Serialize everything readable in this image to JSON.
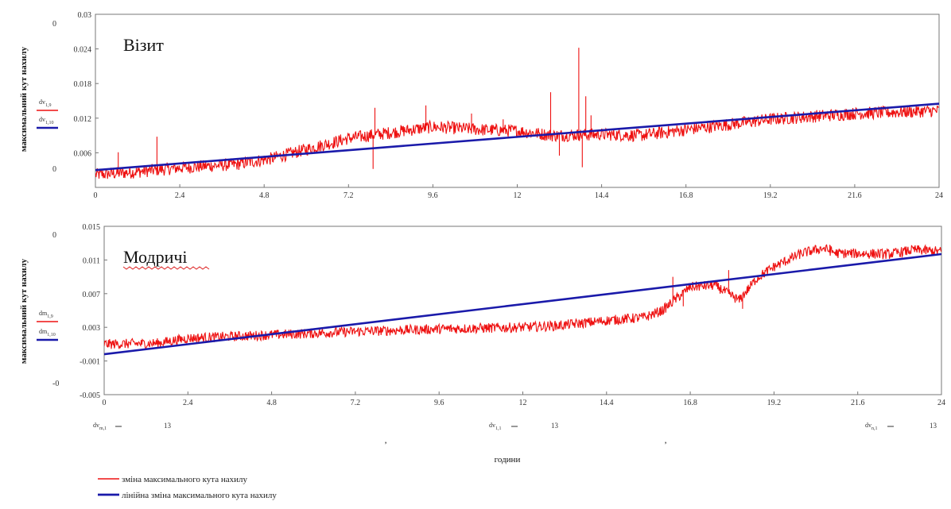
{
  "chart_data": [
    {
      "type": "line",
      "title": "Візит",
      "ylabel": "максимальний кут нахилу",
      "xlim": [
        0,
        24
      ],
      "ylim": [
        0,
        0.03
      ],
      "x_ticks": [
        "0",
        "2.4",
        "4.8",
        "7.2",
        "9.6",
        "12",
        "14.4",
        "16.8",
        "19.2",
        "21.6",
        "24"
      ],
      "y_ticks": [
        "0",
        "0.006",
        "0.012",
        "0.018",
        "0.024",
        "0.03"
      ],
      "y_ticks_display": [
        "",
        "0.006",
        "0.012",
        "0.018",
        "0.024",
        "0.03"
      ],
      "extra_left_values": [
        "0",
        "0"
      ],
      "var_labels": [
        "dv_{1,9}",
        "dv_{1,10}"
      ],
      "series": [
        {
          "color": "#ee1111",
          "noise": 0.0011,
          "points": [
            [
              0,
              0.0022
            ],
            [
              1,
              0.0026
            ],
            [
              2.4,
              0.0034
            ],
            [
              4,
              0.004
            ],
            [
              5,
              0.005
            ],
            [
              7.2,
              0.0085
            ],
            [
              9.6,
              0.0105
            ],
            [
              11,
              0.01
            ],
            [
              12,
              0.0098
            ],
            [
              13,
              0.009
            ],
            [
              14.4,
              0.0092
            ],
            [
              15.5,
              0.009
            ],
            [
              16.8,
              0.01
            ],
            [
              19.2,
              0.0118
            ],
            [
              21.6,
              0.0128
            ],
            [
              24,
              0.0133
            ]
          ],
          "spikes": [
            [
              0.65,
              0.0061
            ],
            [
              1.75,
              0.0088
            ],
            [
              7.95,
              0.0138
            ],
            [
              9.4,
              0.0142
            ],
            [
              10.7,
              0.0128
            ],
            [
              11.6,
              0.0118
            ],
            [
              12.95,
              0.0165
            ],
            [
              13.75,
              0.0242
            ],
            [
              13.95,
              0.0158
            ],
            [
              14.1,
              0.0125
            ]
          ],
          "dips": [
            [
              7.9,
              0.0032
            ],
            [
              13.85,
              0.0035
            ],
            [
              13.2,
              0.0055
            ]
          ]
        },
        {
          "color": "#1a1aaa",
          "points": [
            [
              0,
              0.003
            ],
            [
              24,
              0.0145
            ]
          ]
        }
      ]
    },
    {
      "type": "line",
      "title": "Модричі",
      "ylabel": "максимальний кут нахилу",
      "xlim": [
        0,
        24
      ],
      "ylim": [
        -0.005,
        0.015
      ],
      "x_ticks": [
        "0",
        "2.4",
        "4.8",
        "7.2",
        "9.6",
        "12",
        "14.4",
        "16.8",
        "19.2",
        "21.6",
        "24"
      ],
      "y_ticks": [
        "-0.005",
        "-0.001",
        "0.003",
        "0.007",
        "0.011",
        "0.015"
      ],
      "y_ticks_display": [
        "-0.005",
        "-0.001",
        "0.003",
        "0.007",
        "0.011",
        "0.015"
      ],
      "extra_left_values": [
        "0",
        "-0"
      ],
      "var_labels": [
        "dm_{1,9}",
        "dm_{1,10}"
      ],
      "series": [
        {
          "color": "#ee1111",
          "noise": 0.0006,
          "points": [
            [
              0,
              0.001
            ],
            [
              1.5,
              0.0011
            ],
            [
              2.4,
              0.0017
            ],
            [
              4.8,
              0.0021
            ],
            [
              7.2,
              0.0025
            ],
            [
              9.6,
              0.0028
            ],
            [
              12,
              0.003
            ],
            [
              13,
              0.0032
            ],
            [
              14.4,
              0.0038
            ],
            [
              15.5,
              0.0042
            ],
            [
              16,
              0.005
            ],
            [
              16.8,
              0.0078
            ],
            [
              17.5,
              0.008
            ],
            [
              18.2,
              0.0062
            ],
            [
              18.7,
              0.0088
            ],
            [
              19.2,
              0.0102
            ],
            [
              20,
              0.0118
            ],
            [
              20.6,
              0.0124
            ],
            [
              21,
              0.0118
            ],
            [
              22.5,
              0.0117
            ],
            [
              23.2,
              0.0122
            ],
            [
              24,
              0.012
            ]
          ],
          "spikes": [
            [
              16.3,
              0.009
            ],
            [
              17.9,
              0.0098
            ],
            [
              20.8,
              0.0128
            ]
          ],
          "dips": [
            [
              16.6,
              0.0055
            ],
            [
              18.3,
              0.0052
            ]
          ]
        },
        {
          "color": "#1a1aaa",
          "points": [
            [
              0,
              -0.0002
            ],
            [
              24,
              0.0117
            ]
          ]
        }
      ]
    }
  ],
  "bottom_labels": [
    {
      "var": "dv_{m,1}",
      "val": "13"
    },
    {
      "var": "dv_{1,1}",
      "val": "13"
    },
    {
      "var": "dv_{n,1}",
      "val": "13"
    }
  ],
  "bottom_commas": [
    ",",
    ","
  ],
  "xlabel": "години",
  "legend": [
    {
      "label": "зміна максимального кута нахилу",
      "color": "#ee1111"
    },
    {
      "label": "лінійна зміна максимального кута нахилу",
      "color": "#1a1aaa"
    }
  ]
}
